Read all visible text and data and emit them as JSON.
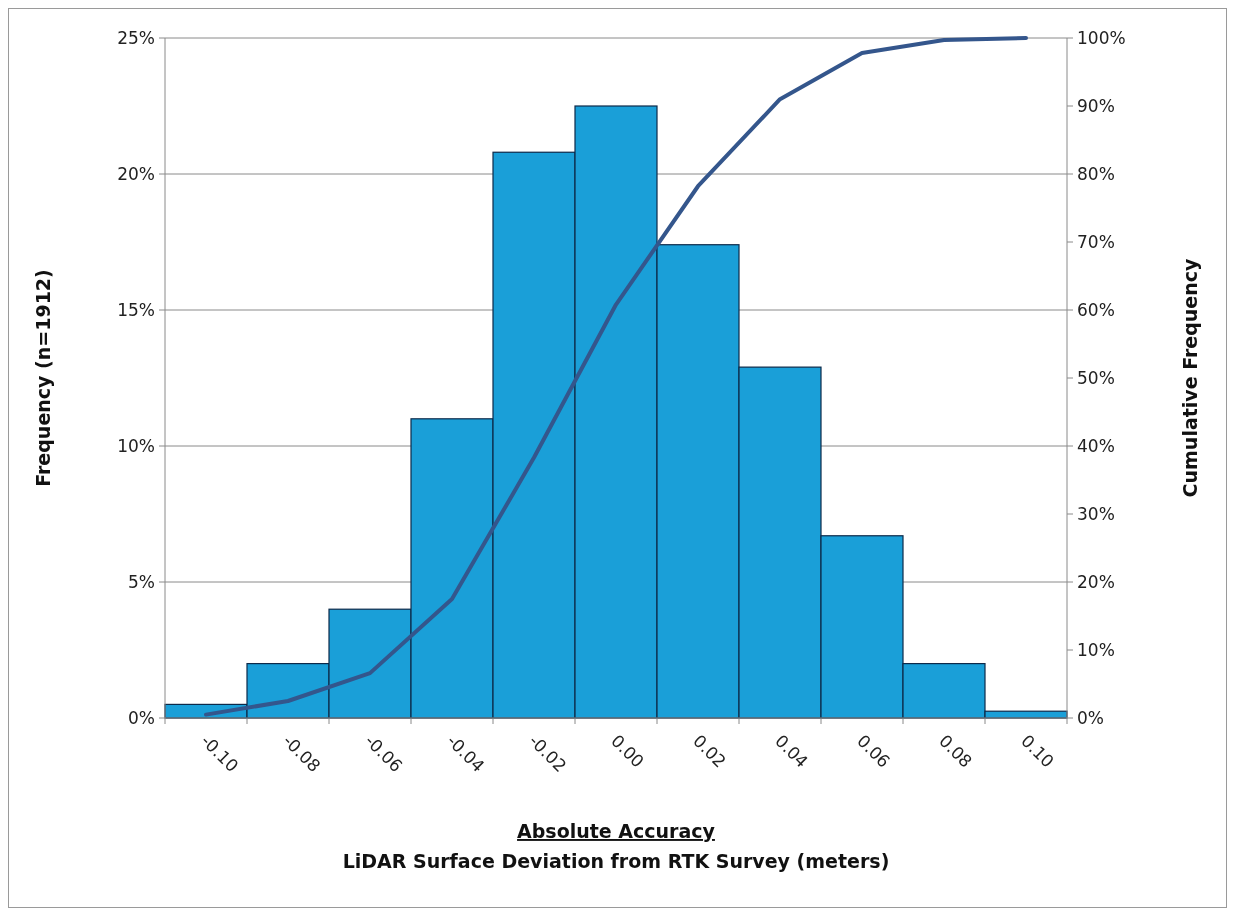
{
  "chart_data": {
    "type": "histogram",
    "xlabel": "Absolute Accuracy\nLiDAR Surface Deviation from RTK Survey (meters)",
    "ylabel": "Frequency (n=1912)",
    "y2label": "Cumulative Frequency",
    "bins": [
      -0.11,
      -0.09,
      -0.07,
      -0.05,
      -0.03,
      -0.01,
      0.01,
      0.03,
      0.05,
      0.07,
      0.09,
      0.11
    ],
    "values": [
      0.5,
      2.0,
      4.0,
      11.0,
      20.8,
      22.5,
      17.4,
      12.9,
      6.7,
      2.0,
      0.25
    ],
    "color": "#1a9fd8",
    "series": [
      {
        "type": "line",
        "axis": "y2",
        "color": "#34568c",
        "x": [
          -0.1,
          -0.08,
          -0.06,
          -0.04,
          -0.02,
          0,
          0.02,
          0.04,
          0.06,
          0.08,
          0.1
        ],
        "values": [
          0.5,
          2.5,
          6.6,
          17.5,
          38.3,
          60.8,
          78.2,
          91.0,
          97.8,
          99.7,
          100
        ]
      }
    ],
    "xlim": [
      -0.11,
      0.11
    ],
    "xticks": [
      {
        "value": -0.1,
        "label": "-0.10"
      },
      {
        "value": -0.08,
        "label": "-0.08"
      },
      {
        "value": -0.06,
        "label": "-0.06"
      },
      {
        "value": -0.04,
        "label": "-0.04"
      },
      {
        "value": -0.02,
        "label": "-0.02"
      },
      {
        "value": 0,
        "label": "0.00"
      },
      {
        "value": 0.02,
        "label": "0.02"
      },
      {
        "value": 0.04,
        "label": "0.04"
      },
      {
        "value": 0.06,
        "label": "0.06"
      },
      {
        "value": 0.08,
        "label": "0.08"
      },
      {
        "value": 0.1,
        "label": "0.10"
      }
    ],
    "ylim": [
      0,
      25
    ],
    "yticks": [
      {
        "value": 0,
        "label": "0%"
      },
      {
        "value": 5,
        "label": "5%"
      },
      {
        "value": 10,
        "label": "10%"
      },
      {
        "value": 15,
        "label": "15%"
      },
      {
        "value": 20,
        "label": "20%"
      },
      {
        "value": 25,
        "label": "25%"
      }
    ],
    "y2lim": [
      0,
      100
    ],
    "y2ticks": [
      {
        "value": 0,
        "label": "0%"
      },
      {
        "value": 10,
        "label": "10%"
      },
      {
        "value": 20,
        "label": "20%"
      },
      {
        "value": 30,
        "label": "30%"
      },
      {
        "value": 40,
        "label": "40%"
      },
      {
        "value": 50,
        "label": "50%"
      },
      {
        "value": 60,
        "label": "60%"
      },
      {
        "value": 70,
        "label": "70%"
      },
      {
        "value": 80,
        "label": "80%"
      },
      {
        "value": 90,
        "label": "90%"
      },
      {
        "value": 100,
        "label": "100%"
      }
    ],
    "grid": "y",
    "marker": "none",
    "line_style": "solid"
  }
}
